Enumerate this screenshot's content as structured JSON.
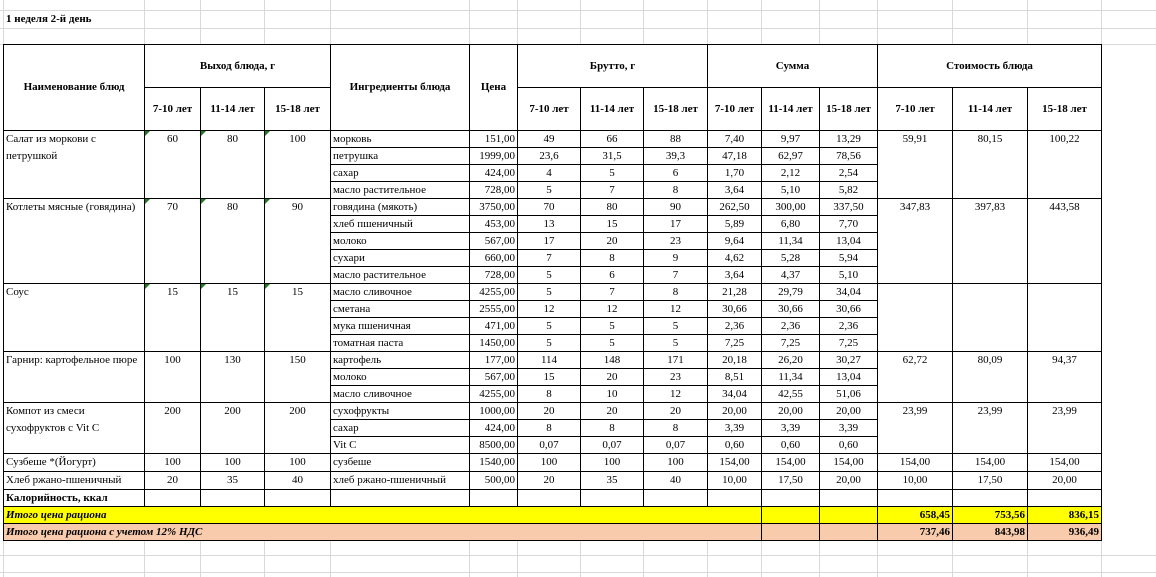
{
  "sheet_title": "1 неделя 2-й день",
  "headers": {
    "dish_name": "Наименование блюд",
    "yield": "Выход блюда, г",
    "ingredients": "Ингредиенты блюда",
    "price": "Цена",
    "brutto": "Брутто, г",
    "sum": "Сумма",
    "cost": "Стоимость блюда",
    "ages": [
      "7-10 лет",
      "11-14 лет",
      "15-18 лет"
    ]
  },
  "dishes": [
    {
      "name": "Салат из моркови с петрушкой",
      "yield": [
        "60",
        "80",
        "100"
      ],
      "cost": [
        "59,91",
        "80,15",
        "100,22"
      ],
      "flag": true,
      "ingredients": [
        {
          "name": "морковь",
          "price": "151,00",
          "brutto": [
            "49",
            "66",
            "88"
          ],
          "sum": [
            "7,40",
            "9,97",
            "13,29"
          ]
        },
        {
          "name": "петрушка",
          "price": "1999,00",
          "brutto": [
            "23,6",
            "31,5",
            "39,3"
          ],
          "sum": [
            "47,18",
            "62,97",
            "78,56"
          ]
        },
        {
          "name": "сахар",
          "price": "424,00",
          "brutto": [
            "4",
            "5",
            "6"
          ],
          "sum": [
            "1,70",
            "2,12",
            "2,54"
          ]
        },
        {
          "name": "масло растительное",
          "price": "728,00",
          "brutto": [
            "5",
            "7",
            "8"
          ],
          "sum": [
            "3,64",
            "5,10",
            "5,82"
          ]
        }
      ]
    },
    {
      "name": "Котлеты мясные (говядина)",
      "yield": [
        "70",
        "80",
        "90"
      ],
      "cost": [
        "347,83",
        "397,83",
        "443,58"
      ],
      "flag": true,
      "ingredients": [
        {
          "name": "говядина (мякоть)",
          "price": "3750,00",
          "brutto": [
            "70",
            "80",
            "90"
          ],
          "sum": [
            "262,50",
            "300,00",
            "337,50"
          ]
        },
        {
          "name": "хлеб пшеничный",
          "price": "453,00",
          "brutto": [
            "13",
            "15",
            "17"
          ],
          "sum": [
            "5,89",
            "6,80",
            "7,70"
          ]
        },
        {
          "name": "молоко",
          "price": "567,00",
          "brutto": [
            "17",
            "20",
            "23"
          ],
          "sum": [
            "9,64",
            "11,34",
            "13,04"
          ]
        },
        {
          "name": "сухари",
          "price": "660,00",
          "brutto": [
            "7",
            "8",
            "9"
          ],
          "sum": [
            "4,62",
            "5,28",
            "5,94"
          ]
        },
        {
          "name": "масло растительное",
          "price": "728,00",
          "brutto": [
            "5",
            "6",
            "7"
          ],
          "sum": [
            "3,64",
            "4,37",
            "5,10"
          ]
        }
      ]
    },
    {
      "name": "Соус",
      "yield": [
        "15",
        "15",
        "15"
      ],
      "cost": [
        "",
        "",
        ""
      ],
      "flag": true,
      "ingredients": [
        {
          "name": "масло сливочное",
          "price": "4255,00",
          "brutto": [
            "5",
            "7",
            "8"
          ],
          "sum": [
            "21,28",
            "29,79",
            "34,04"
          ]
        },
        {
          "name": "сметана",
          "price": "2555,00",
          "brutto": [
            "12",
            "12",
            "12"
          ],
          "sum": [
            "30,66",
            "30,66",
            "30,66"
          ]
        },
        {
          "name": "мука пшеничная",
          "price": "471,00",
          "brutto": [
            "5",
            "5",
            "5"
          ],
          "sum": [
            "2,36",
            "2,36",
            "2,36"
          ]
        },
        {
          "name": "томатная паста",
          "price": "1450,00",
          "brutto": [
            "5",
            "5",
            "5"
          ],
          "sum": [
            "7,25",
            "7,25",
            "7,25"
          ]
        }
      ]
    },
    {
      "name": "Гарнир:  картофельное пюре",
      "yield": [
        "100",
        "130",
        "150"
      ],
      "cost": [
        "62,72",
        "80,09",
        "94,37"
      ],
      "flag": false,
      "ingredients": [
        {
          "name": "картофель",
          "price": "177,00",
          "brutto": [
            "114",
            "148",
            "171"
          ],
          "sum": [
            "20,18",
            "26,20",
            "30,27"
          ]
        },
        {
          "name": "молоко",
          "price": "567,00",
          "brutto": [
            "15",
            "20",
            "23"
          ],
          "sum": [
            "8,51",
            "11,34",
            "13,04"
          ]
        },
        {
          "name": "масло сливочное",
          "price": "4255,00",
          "brutto": [
            "8",
            "10",
            "12"
          ],
          "sum": [
            "34,04",
            "42,55",
            "51,06"
          ]
        }
      ]
    },
    {
      "name": "Компот из смеси сухофруктов с Vit C",
      "yield": [
        "200",
        "200",
        "200"
      ],
      "cost": [
        "23,99",
        "23,99",
        "23,99"
      ],
      "flag": false,
      "ingredients": [
        {
          "name": "сухофрукты",
          "price": "1000,00",
          "brutto": [
            "20",
            "20",
            "20"
          ],
          "sum": [
            "20,00",
            "20,00",
            "20,00"
          ]
        },
        {
          "name": "сахар",
          "price": "424,00",
          "brutto": [
            "8",
            "8",
            "8"
          ],
          "sum": [
            "3,39",
            "3,39",
            "3,39"
          ]
        },
        {
          "name": "Vit C",
          "price": "8500,00",
          "brutto": [
            "0,07",
            "0,07",
            "0,07"
          ],
          "sum": [
            "0,60",
            "0,60",
            "0,60"
          ]
        }
      ]
    },
    {
      "name": "Сузбеше *(Йогурт)",
      "yield": [
        "100",
        "100",
        "100"
      ],
      "cost": [
        "154,00",
        "154,00",
        "154,00"
      ],
      "flag": false,
      "ingredients": [
        {
          "name": "сузбеше",
          "price": "1540,00",
          "brutto": [
            "100",
            "100",
            "100"
          ],
          "sum": [
            "154,00",
            "154,00",
            "154,00"
          ]
        }
      ]
    },
    {
      "name": "Хлеб ржано-пшеничный",
      "yield": [
        "20",
        "35",
        "40"
      ],
      "cost": [
        "10,00",
        "17,50",
        "20,00"
      ],
      "flag": false,
      "ingredients": [
        {
          "name": "хлеб ржано-пшеничный",
          "price": "500,00",
          "brutto": [
            "20",
            "35",
            "40"
          ],
          "sum": [
            "10,00",
            "17,50",
            "20,00"
          ]
        }
      ]
    }
  ],
  "calories_label": "Калорийность, ккал",
  "total": {
    "label": "Итого цена рациона",
    "values": [
      "658,45",
      "753,56",
      "836,15"
    ],
    "color": "#ffff00"
  },
  "total_vat": {
    "label": "Итого цена рациона с учетом 12% НДС",
    "values": [
      "737,46",
      "843,98",
      "936,49"
    ],
    "color": "#f8cbad"
  }
}
